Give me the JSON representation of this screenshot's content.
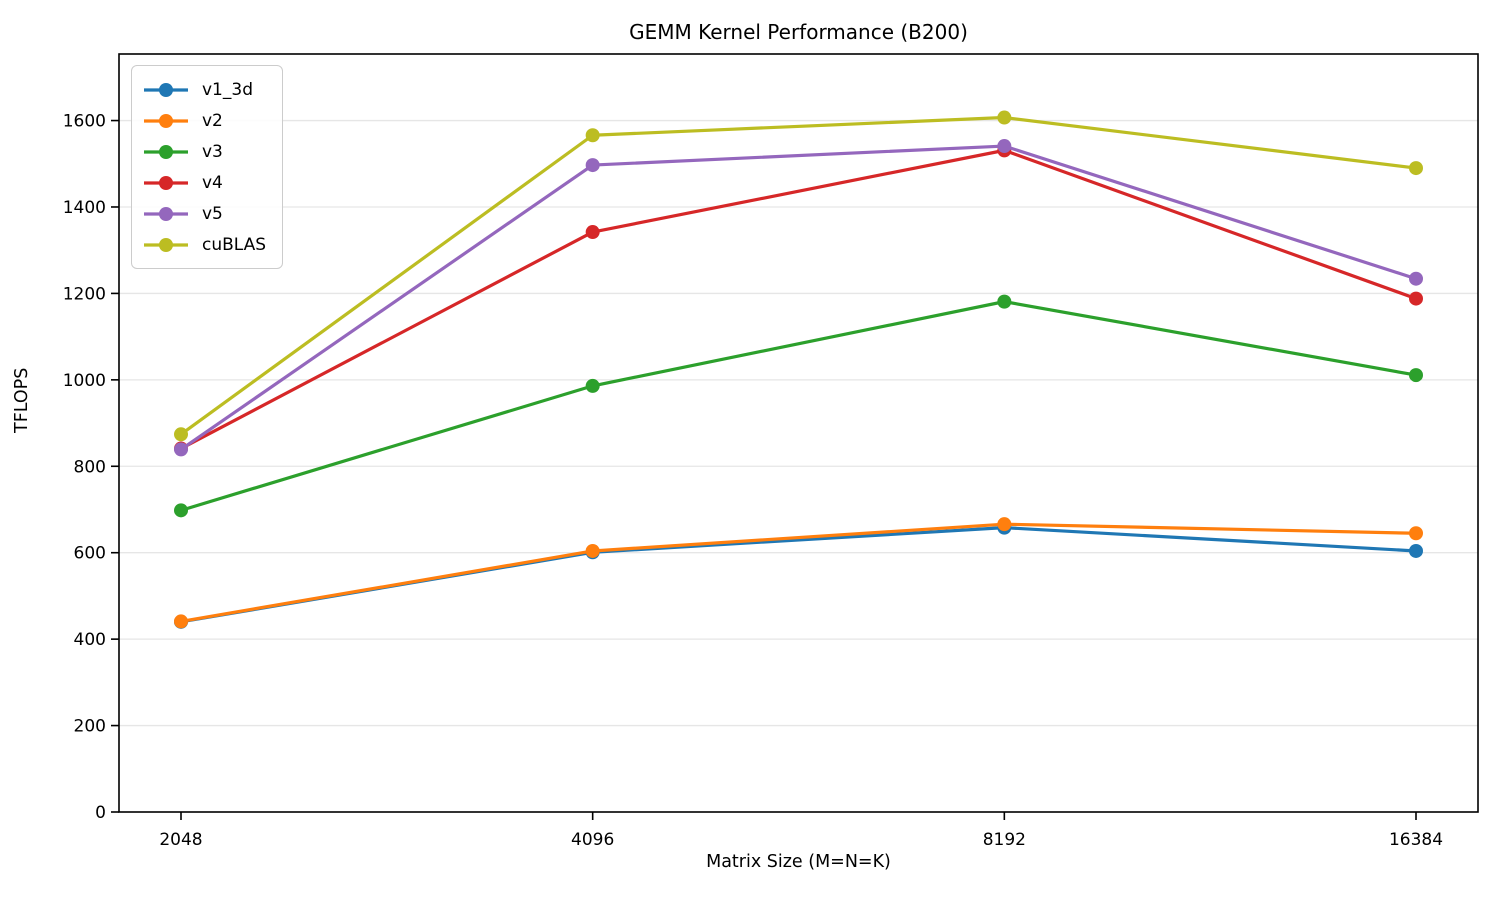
{
  "chart_data": {
    "type": "line",
    "title": "GEMM Kernel Performance (B200)",
    "xlabel": "Matrix Size (M=N=K)",
    "ylabel": "TFLOPS",
    "categories": [
      "2048",
      "4096",
      "8192",
      "16384"
    ],
    "y_ticks": [
      0,
      200,
      400,
      600,
      800,
      1000,
      1200,
      1400,
      1600
    ],
    "ylim": [
      0,
      1754
    ],
    "grid": "horizontal-only",
    "grid_color": "#e6e6e6",
    "axis_color": "#000000",
    "legend_position": "upper-left",
    "marker": "circle",
    "series": [
      {
        "name": "v1_3d",
        "color": "#1f77b4",
        "values": [
          440,
          601,
          658,
          604
        ]
      },
      {
        "name": "v2",
        "color": "#ff7f0e",
        "values": [
          441,
          604,
          666,
          645
        ]
      },
      {
        "name": "v3",
        "color": "#2ca02c",
        "values": [
          698,
          986,
          1181,
          1011
        ]
      },
      {
        "name": "v4",
        "color": "#d62728",
        "values": [
          841,
          1342,
          1531,
          1188
        ]
      },
      {
        "name": "v5",
        "color": "#9467bd",
        "values": [
          839,
          1497,
          1541,
          1234
        ]
      },
      {
        "name": "cuBLAS",
        "color": "#bcbd22",
        "values": [
          874,
          1566,
          1607,
          1490
        ]
      }
    ]
  }
}
